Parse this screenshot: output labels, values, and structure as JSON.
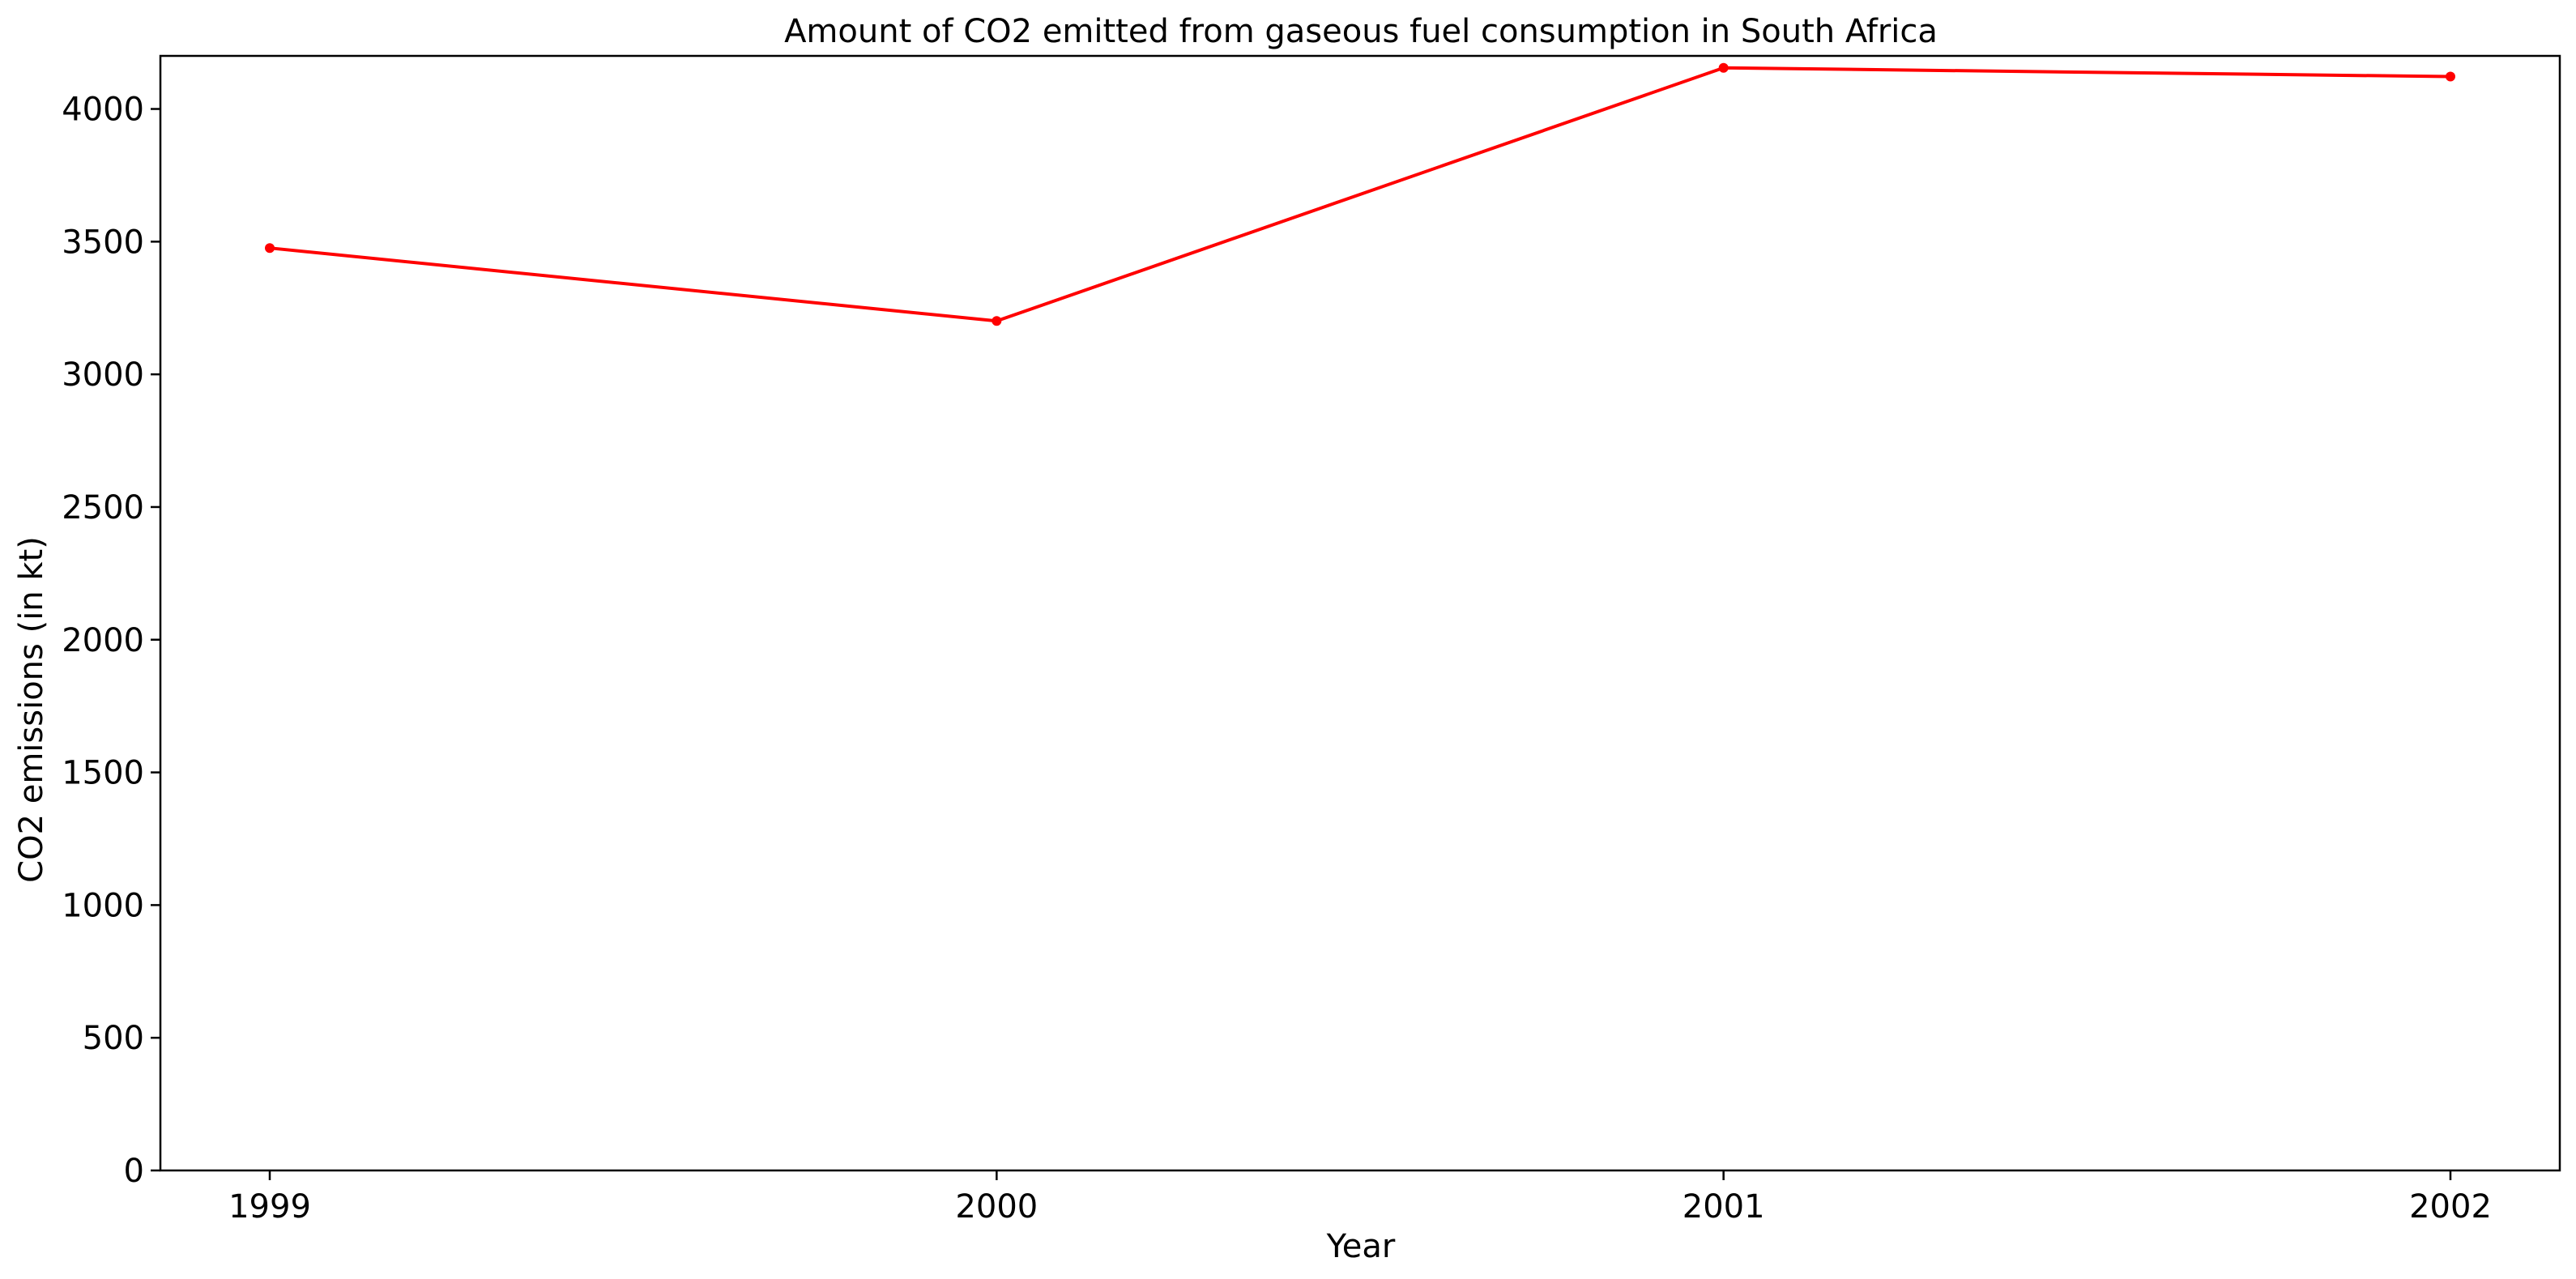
{
  "chart_data": {
    "type": "line",
    "title": "Amount of CO2 emitted from gaseous fuel consumption in South Africa",
    "xlabel": "Year",
    "ylabel": "CO2 emissions (in kt)",
    "x": [
      "1999",
      "2000",
      "2001",
      "2002"
    ],
    "series": [
      {
        "values": [
          3476,
          3201,
          4155,
          4122
        ],
        "color": "#ff0000",
        "marker": "circle"
      }
    ],
    "ylim": [
      0,
      4200
    ],
    "yticks": [
      "0",
      "500",
      "1000",
      "1500",
      "2000",
      "2500",
      "3000",
      "3500",
      "4000"
    ],
    "grid": false,
    "legend": "none"
  }
}
